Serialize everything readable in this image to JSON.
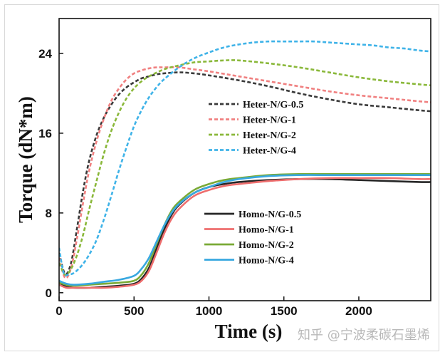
{
  "watermark": "知乎 @宁波柔碳石墨烯",
  "chart_data": {
    "type": "line",
    "title": "",
    "xlabel": "Time (s)",
    "ylabel": "Torque (dN*m)",
    "xlim": [
      0,
      2480
    ],
    "ylim": [
      -0.8,
      27.5
    ],
    "x_ticks": [
      0,
      500,
      1000,
      1500,
      2000
    ],
    "y_ticks": [
      0,
      8,
      16,
      24
    ],
    "grid": false,
    "legends": [
      {
        "position": "center-right",
        "series": [
          "Heter-N/G-0.5",
          "Heter-N/G-1",
          "Heter-N/G-2",
          "Heter-N/G-4"
        ]
      },
      {
        "position": "lower-left",
        "series": [
          "Homo-N/G-0.5",
          "Homo-N/G-1",
          "Homo-N/G-2",
          "Homo-N/G-4"
        ]
      }
    ],
    "series": [
      {
        "name": "Heter-N/G-0.5",
        "color": "#3a3a3a",
        "style": "dashed",
        "points": [
          [
            0,
            4
          ],
          [
            40,
            1.9
          ],
          [
            80,
            3.0
          ],
          [
            120,
            6.5
          ],
          [
            160,
            10.2
          ],
          [
            200,
            13.2
          ],
          [
            250,
            15.8
          ],
          [
            300,
            17.6
          ],
          [
            350,
            18.9
          ],
          [
            400,
            19.9
          ],
          [
            450,
            20.6
          ],
          [
            500,
            21.1
          ],
          [
            550,
            21.5
          ],
          [
            600,
            21.7
          ],
          [
            650,
            21.9
          ],
          [
            700,
            22.0
          ],
          [
            800,
            22.1
          ],
          [
            900,
            22.0
          ],
          [
            1000,
            21.8
          ],
          [
            1200,
            21.3
          ],
          [
            1400,
            20.7
          ],
          [
            1600,
            20.0
          ],
          [
            1800,
            19.4
          ],
          [
            2000,
            18.9
          ],
          [
            2200,
            18.6
          ],
          [
            2400,
            18.3
          ],
          [
            2480,
            18.2
          ]
        ]
      },
      {
        "name": "Heter-N/G-1",
        "color": "#f08080",
        "style": "dashed",
        "points": [
          [
            0,
            3.5
          ],
          [
            40,
            1.5
          ],
          [
            80,
            2.5
          ],
          [
            120,
            5.5
          ],
          [
            160,
            9.0
          ],
          [
            200,
            12.2
          ],
          [
            250,
            15.2
          ],
          [
            300,
            17.5
          ],
          [
            350,
            19.3
          ],
          [
            400,
            20.5
          ],
          [
            450,
            21.4
          ],
          [
            500,
            22.0
          ],
          [
            550,
            22.3
          ],
          [
            600,
            22.5
          ],
          [
            650,
            22.6
          ],
          [
            700,
            22.6
          ],
          [
            800,
            22.6
          ],
          [
            900,
            22.4
          ],
          [
            1000,
            22.2
          ],
          [
            1200,
            21.7
          ],
          [
            1400,
            21.2
          ],
          [
            1600,
            20.7
          ],
          [
            1800,
            20.2
          ],
          [
            2000,
            19.8
          ],
          [
            2200,
            19.5
          ],
          [
            2400,
            19.2
          ],
          [
            2480,
            19.1
          ]
        ]
      },
      {
        "name": "Heter-N/G-2",
        "color": "#8ab83a",
        "style": "dashed",
        "points": [
          [
            0,
            3
          ],
          [
            40,
            1.8
          ],
          [
            80,
            2.4
          ],
          [
            120,
            3.8
          ],
          [
            160,
            5.8
          ],
          [
            200,
            8.3
          ],
          [
            250,
            11.2
          ],
          [
            300,
            14.0
          ],
          [
            350,
            16.3
          ],
          [
            400,
            18.1
          ],
          [
            450,
            19.5
          ],
          [
            500,
            20.5
          ],
          [
            550,
            21.2
          ],
          [
            600,
            21.7
          ],
          [
            700,
            22.4
          ],
          [
            800,
            22.8
          ],
          [
            900,
            23.1
          ],
          [
            1000,
            23.2
          ],
          [
            1100,
            23.3
          ],
          [
            1200,
            23.3
          ],
          [
            1400,
            23.0
          ],
          [
            1600,
            22.6
          ],
          [
            1800,
            22.1
          ],
          [
            2000,
            21.6
          ],
          [
            2200,
            21.2
          ],
          [
            2400,
            20.9
          ],
          [
            2480,
            20.8
          ]
        ]
      },
      {
        "name": "Heter-N/G-4",
        "color": "#3fb3e8",
        "style": "dashed",
        "points": [
          [
            0,
            4.5
          ],
          [
            30,
            2.0
          ],
          [
            60,
            1.8
          ],
          [
            100,
            2.0
          ],
          [
            150,
            2.7
          ],
          [
            200,
            3.8
          ],
          [
            250,
            5.3
          ],
          [
            300,
            7.4
          ],
          [
            350,
            9.8
          ],
          [
            400,
            12.3
          ],
          [
            450,
            14.6
          ],
          [
            500,
            16.7
          ],
          [
            550,
            18.3
          ],
          [
            600,
            19.6
          ],
          [
            650,
            20.6
          ],
          [
            700,
            21.4
          ],
          [
            800,
            22.6
          ],
          [
            900,
            23.5
          ],
          [
            1000,
            24.1
          ],
          [
            1100,
            24.6
          ],
          [
            1200,
            24.9
          ],
          [
            1300,
            25.1
          ],
          [
            1400,
            25.2
          ],
          [
            1500,
            25.2
          ],
          [
            1600,
            25.2
          ],
          [
            1700,
            25.2
          ],
          [
            1800,
            25.1
          ],
          [
            1900,
            25.0
          ],
          [
            2000,
            24.9
          ],
          [
            2100,
            24.8
          ],
          [
            2200,
            24.6
          ],
          [
            2300,
            24.5
          ],
          [
            2400,
            24.3
          ],
          [
            2480,
            24.2
          ]
        ]
      },
      {
        "name": "Homo-N/G-0.5",
        "color": "#262626",
        "style": "solid",
        "points": [
          [
            0,
            0.9
          ],
          [
            50,
            0.6
          ],
          [
            100,
            0.5
          ],
          [
            200,
            0.5
          ],
          [
            300,
            0.6
          ],
          [
            400,
            0.7
          ],
          [
            500,
            0.9
          ],
          [
            550,
            1.4
          ],
          [
            600,
            2.5
          ],
          [
            650,
            4.4
          ],
          [
            700,
            6.3
          ],
          [
            750,
            7.8
          ],
          [
            800,
            8.8
          ],
          [
            900,
            10.0
          ],
          [
            1000,
            10.6
          ],
          [
            1100,
            10.9
          ],
          [
            1200,
            11.1
          ],
          [
            1400,
            11.3
          ],
          [
            1600,
            11.4
          ],
          [
            1800,
            11.4
          ],
          [
            2000,
            11.3
          ],
          [
            2200,
            11.2
          ],
          [
            2400,
            11.1
          ],
          [
            2480,
            11.1
          ]
        ]
      },
      {
        "name": "Homo-N/G-1",
        "color": "#ee6e6e",
        "style": "solid",
        "points": [
          [
            0,
            0.8
          ],
          [
            50,
            0.5
          ],
          [
            100,
            0.5
          ],
          [
            200,
            0.5
          ],
          [
            300,
            0.5
          ],
          [
            400,
            0.6
          ],
          [
            500,
            0.8
          ],
          [
            550,
            1.2
          ],
          [
            600,
            2.2
          ],
          [
            650,
            4.0
          ],
          [
            700,
            5.9
          ],
          [
            750,
            7.4
          ],
          [
            800,
            8.4
          ],
          [
            900,
            9.7
          ],
          [
            1000,
            10.3
          ],
          [
            1100,
            10.7
          ],
          [
            1200,
            10.9
          ],
          [
            1400,
            11.2
          ],
          [
            1600,
            11.4
          ],
          [
            1800,
            11.5
          ],
          [
            2000,
            11.5
          ],
          [
            2200,
            11.5
          ],
          [
            2400,
            11.4
          ],
          [
            2480,
            11.4
          ]
        ]
      },
      {
        "name": "Homo-N/G-2",
        "color": "#7aaa36",
        "style": "solid",
        "points": [
          [
            0,
            1.0
          ],
          [
            50,
            0.8
          ],
          [
            100,
            0.7
          ],
          [
            200,
            0.8
          ],
          [
            300,
            0.9
          ],
          [
            400,
            1.0
          ],
          [
            500,
            1.2
          ],
          [
            550,
            1.8
          ],
          [
            600,
            3.0
          ],
          [
            650,
            4.9
          ],
          [
            700,
            6.7
          ],
          [
            750,
            8.2
          ],
          [
            800,
            9.1
          ],
          [
            900,
            10.3
          ],
          [
            1000,
            10.9
          ],
          [
            1100,
            11.3
          ],
          [
            1200,
            11.5
          ],
          [
            1400,
            11.8
          ],
          [
            1600,
            11.9
          ],
          [
            1800,
            11.9
          ],
          [
            2000,
            11.9
          ],
          [
            2200,
            11.9
          ],
          [
            2400,
            11.9
          ],
          [
            2480,
            11.9
          ]
        ]
      },
      {
        "name": "Homo-N/G-4",
        "color": "#38a8e0",
        "style": "solid",
        "points": [
          [
            0,
            1.2
          ],
          [
            50,
            0.9
          ],
          [
            100,
            0.8
          ],
          [
            200,
            0.9
          ],
          [
            300,
            1.1
          ],
          [
            400,
            1.3
          ],
          [
            500,
            1.7
          ],
          [
            550,
            2.4
          ],
          [
            600,
            3.5
          ],
          [
            650,
            5.1
          ],
          [
            700,
            6.7
          ],
          [
            750,
            8.0
          ],
          [
            800,
            8.9
          ],
          [
            900,
            10.0
          ],
          [
            1000,
            10.6
          ],
          [
            1100,
            11.1
          ],
          [
            1200,
            11.4
          ],
          [
            1400,
            11.7
          ],
          [
            1600,
            11.8
          ],
          [
            1800,
            11.8
          ],
          [
            2000,
            11.8
          ],
          [
            2200,
            11.8
          ],
          [
            2400,
            11.8
          ],
          [
            2480,
            11.8
          ]
        ]
      }
    ]
  }
}
